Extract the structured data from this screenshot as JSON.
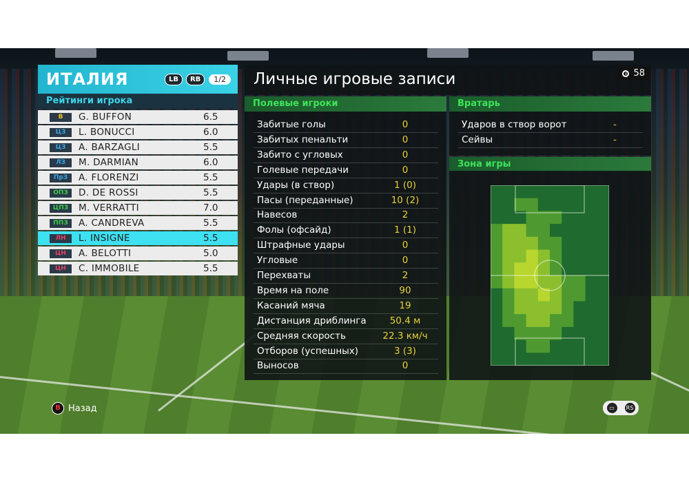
{
  "team": {
    "name": "ИТАЛИЯ",
    "lb": "LB",
    "rb": "RB",
    "page": "1/2",
    "ratings_title": "Рейтинги игрока"
  },
  "players": [
    {
      "pos": "В",
      "pos_color": "#f0c020",
      "name": "G. BUFFON",
      "rating": "6.5"
    },
    {
      "pos": "ЦЗ",
      "pos_color": "#3aa8e8",
      "name": "L. BONUCCI",
      "rating": "6.0"
    },
    {
      "pos": "ЦЗ",
      "pos_color": "#3aa8e8",
      "name": "A. BARZAGLI",
      "rating": "5.5"
    },
    {
      "pos": "ЛЗ",
      "pos_color": "#3aa8e8",
      "name": "M. DARMIAN",
      "rating": "6.0"
    },
    {
      "pos": "ПрЗ",
      "pos_color": "#3aa8e8",
      "name": "A. FLORENZI",
      "rating": "5.5"
    },
    {
      "pos": "ОПЗ",
      "pos_color": "#3ecf4a",
      "name": "D. DE ROSSI",
      "rating": "5.5"
    },
    {
      "pos": "ЦПЗ",
      "pos_color": "#3ecf4a",
      "name": "M. VERRATTI",
      "rating": "7.0"
    },
    {
      "pos": "ППЗ",
      "pos_color": "#3ecf4a",
      "name": "A. CANDREVA",
      "rating": "5.5"
    },
    {
      "pos": "ЛН",
      "pos_color": "#e8406a",
      "name": "L. INSIGNE",
      "rating": "5.5",
      "selected": true
    },
    {
      "pos": "ЦН",
      "pos_color": "#e8406a",
      "name": "A. BELOTTI",
      "rating": "5.0"
    },
    {
      "pos": "ЦН",
      "pos_color": "#e8406a",
      "name": "C. IMMOBILE",
      "rating": "5.5"
    }
  ],
  "records": {
    "title": "Личные игровые записи",
    "timer": "58"
  },
  "field_section": {
    "title": "Полевые игроки"
  },
  "field_stats": [
    {
      "label": "Забитые голы",
      "value": "0"
    },
    {
      "label": "Забитых пенальти",
      "value": "0"
    },
    {
      "label": "Забито с угловых",
      "value": "0"
    },
    {
      "label": "Голевые передачи",
      "value": "0"
    },
    {
      "label": "Удары (в створ)",
      "value": "1 (0)"
    },
    {
      "label": "Пасы (переданные)",
      "value": "10 (2)"
    },
    {
      "label": "Навесов",
      "value": "2"
    },
    {
      "label": "Фолы (офсайд)",
      "value": "1 (1)"
    },
    {
      "label": "Штрафные удары",
      "value": "0"
    },
    {
      "label": "Угловые",
      "value": "0"
    },
    {
      "label": "Перехваты",
      "value": "2"
    },
    {
      "label": "Время на поле",
      "value": "90"
    },
    {
      "label": "Касаний мяча",
      "value": "19"
    },
    {
      "label": "Дистанция дриблинга",
      "value": "50.4 м"
    },
    {
      "label": "Средняя скорость",
      "value": "22.3 км/ч"
    },
    {
      "label": "Отборов (успешных)",
      "value": "3 (3)"
    },
    {
      "label": "Выносов",
      "value": "0"
    }
  ],
  "goalkeeper_section": {
    "title": "Вратарь"
  },
  "goalkeeper_stats": [
    {
      "label": "Ударов в створ ворот",
      "value": "-"
    },
    {
      "label": "Сейвы",
      "value": "-"
    }
  ],
  "zone_section": {
    "title": "Зона игры"
  },
  "heatmap_colors": {
    "low": "#1f6a2e",
    "mid": "#4e9a30",
    "high": "#b8d62e"
  },
  "footer": {
    "back_button": "B",
    "back_label": "Назад",
    "rs_label": "RS"
  }
}
